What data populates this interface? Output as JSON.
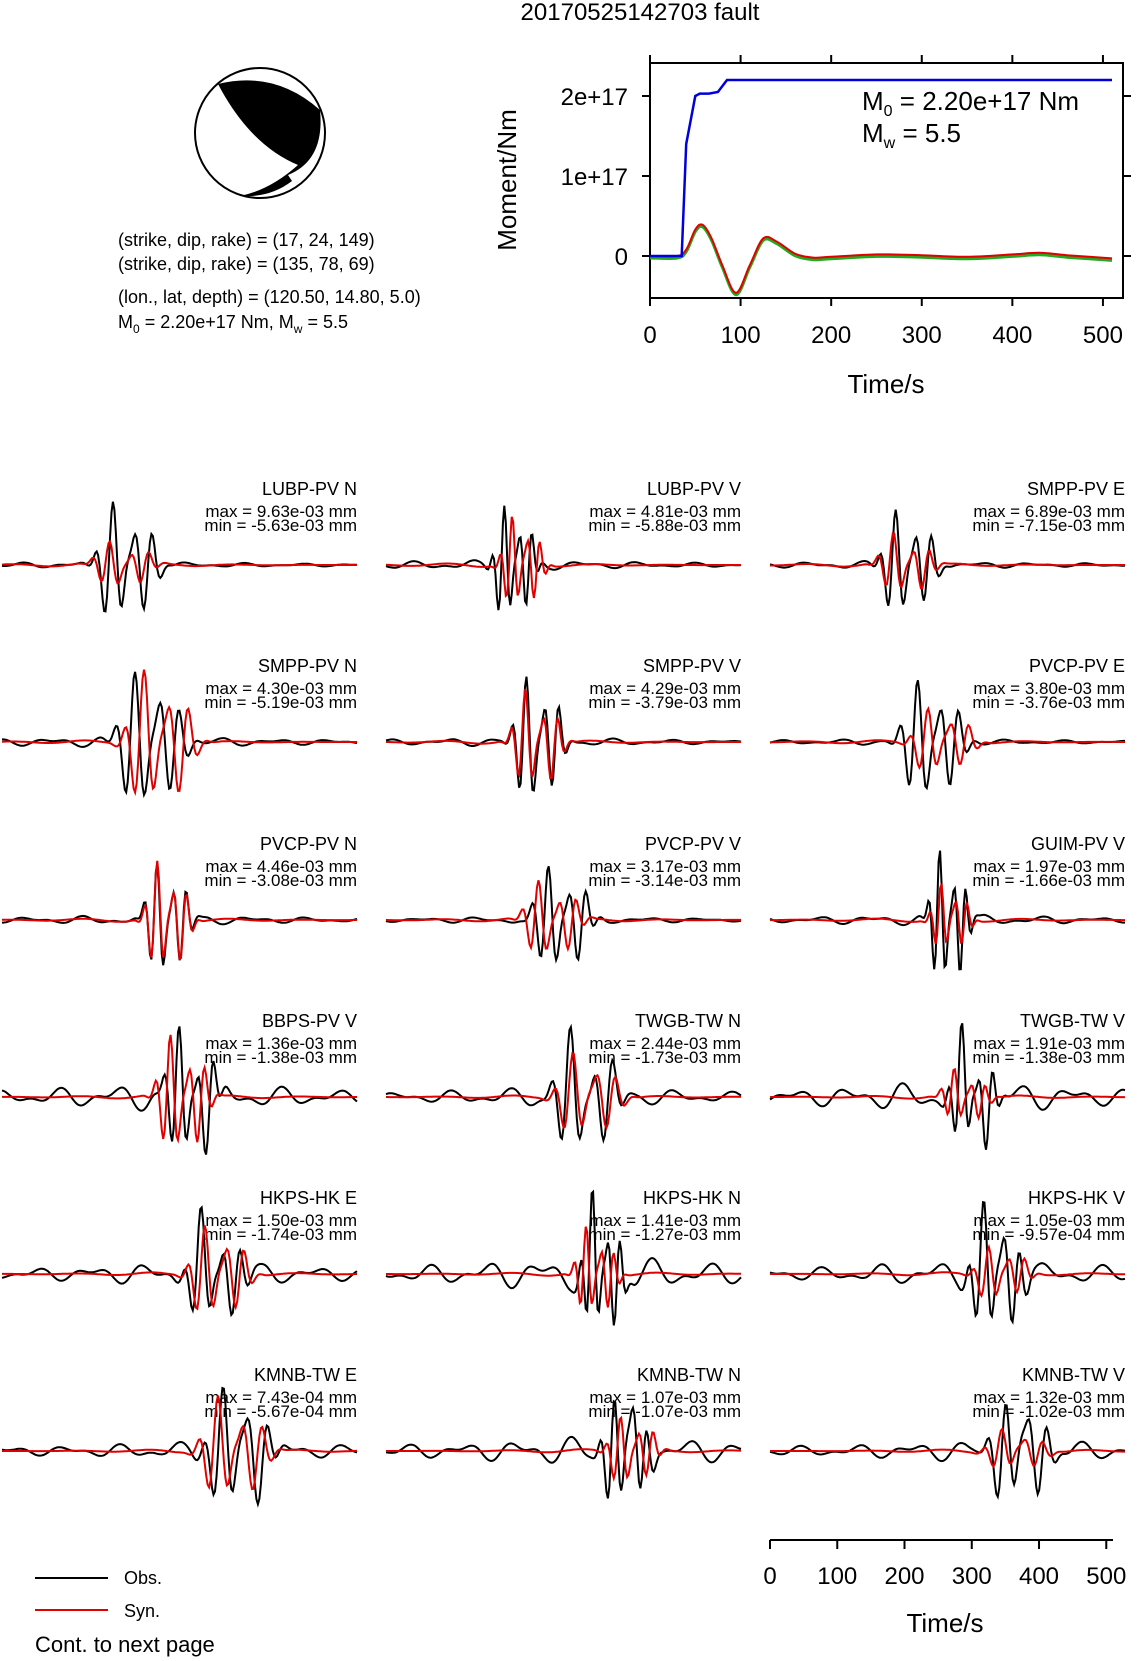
{
  "title": "20170525142703 fault",
  "mechanism": {
    "line1": "(strike, dip, rake) = (17, 24, 149)",
    "line2": "(strike, dip, rake) = (135, 78, 69)",
    "line3": "(lon., lat, depth) = (120.50, 14.80, 5.0)",
    "line4_m0_label": "M",
    "line4_m0_sub": "0",
    "line4_m0_rest": " = 2.20e+17 Nm, M",
    "line4_mw_sub": "w",
    "line4_mw_rest": " = 5.5"
  },
  "colors": {
    "obs": "#000000",
    "syn": "#e00000",
    "moment": "#0000dd",
    "stf_green": "#22aa22"
  },
  "chart_data": [
    {
      "type": "line",
      "name": "moment-rate",
      "xlabel": "Time/s",
      "ylabel": "Moment/Nm",
      "xlim": [
        0,
        510
      ],
      "ylim": [
        -5e+16,
        2.25e+17
      ],
      "x_ticks": [
        "0",
        "100",
        "200",
        "300",
        "400",
        "500"
      ],
      "y_ticks": [
        "0",
        "1e+17",
        "2e+17"
      ],
      "annotation": {
        "m0_label": "M",
        "m0_sub": "0",
        "m0_value": " = 2.20e+17 Nm",
        "mw_label": "M",
        "mw_sub": "w",
        "mw_value": " = 5.5"
      },
      "series": [
        {
          "role": "cumulative moment",
          "x": [
            0,
            35,
            40,
            50,
            55,
            65,
            75,
            85,
            510
          ],
          "y": [
            0,
            0,
            1.4e+17,
            2e+17,
            2.03e+17,
            2.03e+17,
            2.05e+17,
            2.2e+17,
            2.2e+17
          ]
        },
        {
          "role": "moment rate",
          "x": [
            0,
            30,
            40,
            50,
            58,
            68,
            80,
            95,
            110,
            125,
            140,
            160,
            180,
            200,
            250,
            300,
            350,
            400,
            430,
            460,
            510
          ],
          "y": [
            0,
            0,
            8000000000000000.0,
            3.3e+16,
            3.9e+16,
            2.2e+16,
            -1.2e+16,
            -4.6e+16,
            -1.2e+16,
            2.2e+16,
            1.8e+16,
            3000000000000000.0,
            -2000000000000000.0,
            -1000000000000000.0,
            2000000000000000.0,
            1000000000000000.0,
            -1000000000000000.0,
            2000000000000000.0,
            4000000000000000.0,
            1000000000000000.0,
            -3000000000000000.0
          ]
        }
      ]
    },
    {
      "type": "line",
      "name": "waveform-comparison",
      "xlabel": "Time/s",
      "xlim": [
        0,
        510
      ],
      "x_ticks": [
        "0",
        "100",
        "200",
        "300",
        "400",
        "500"
      ],
      "legend": {
        "obs": "Obs.",
        "syn": "Syn."
      },
      "footer": "Cont. to next page",
      "traces": [
        {
          "label": "LUBP-PV N",
          "max": "max = 9.63e-03 mm",
          "min": "min = -5.63e-03 mm"
        },
        {
          "label": "LUBP-PV V",
          "max": "max = 4.81e-03 mm",
          "min": "min = -5.88e-03 mm"
        },
        {
          "label": "SMPP-PV E",
          "max": "max = 6.89e-03 mm",
          "min": "min = -7.15e-03 mm"
        },
        {
          "label": "SMPP-PV N",
          "max": "max = 4.30e-03 mm",
          "min": "min = -5.19e-03 mm"
        },
        {
          "label": "SMPP-PV V",
          "max": "max = 4.29e-03 mm",
          "min": "min = -3.79e-03 mm"
        },
        {
          "label": "PVCP-PV E",
          "max": "max = 3.80e-03 mm",
          "min": "min = -3.76e-03 mm"
        },
        {
          "label": "PVCP-PV N",
          "max": "max = 4.46e-03 mm",
          "min": "min = -3.08e-03 mm"
        },
        {
          "label": "PVCP-PV V",
          "max": "max = 3.17e-03 mm",
          "min": "min = -3.14e-03 mm"
        },
        {
          "label": "GUIM-PV V",
          "max": "max = 1.97e-03 mm",
          "min": "min = -1.66e-03 mm"
        },
        {
          "label": "BBPS-PV V",
          "max": "max = 1.36e-03 mm",
          "min": "min = -1.38e-03 mm"
        },
        {
          "label": "TWGB-TW N",
          "max": "max = 2.44e-03 mm",
          "min": "min = -1.73e-03 mm"
        },
        {
          "label": "TWGB-TW V",
          "max": "max = 1.91e-03 mm",
          "min": "min = -1.38e-03 mm"
        },
        {
          "label": "HKPS-HK E",
          "max": "max = 1.50e-03 mm",
          "min": "min = -1.74e-03 mm"
        },
        {
          "label": "HKPS-HK N",
          "max": "max = 1.41e-03 mm",
          "min": "min = -1.27e-03 mm"
        },
        {
          "label": "HKPS-HK V",
          "max": "max = 1.05e-03 mm",
          "min": "min = -9.57e-04 mm"
        },
        {
          "label": "KMNB-TW E",
          "max": "max = 7.43e-04 mm",
          "min": "min = -5.67e-04 mm"
        },
        {
          "label": "KMNB-TW N",
          "max": "max = 1.07e-03 mm",
          "min": "min = -1.07e-03 mm"
        },
        {
          "label": "KMNB-TW V",
          "max": "max = 1.32e-03 mm",
          "min": "min = -1.02e-03 mm"
        }
      ]
    }
  ]
}
